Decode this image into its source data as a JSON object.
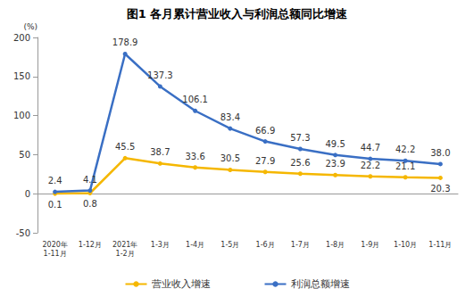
{
  "chart_data": {
    "type": "line",
    "title": "图1 各月累计营业收入与利润总额同比增速",
    "ylabel": "(%)",
    "categories": [
      "2020年\n1-11月",
      "1-12月",
      "2021年\n1-2月",
      "1-3月",
      "1-4月",
      "1-5月",
      "1-6月",
      "1-7月",
      "1-8月",
      "1-9月",
      "1-10月",
      "1-11月"
    ],
    "series": [
      {
        "name": "营业收入增速",
        "color": "#f5b700",
        "marker": "circle",
        "values": [
          0.1,
          0.8,
          45.5,
          38.7,
          33.6,
          30.5,
          27.9,
          25.6,
          23.9,
          22.2,
          21.1,
          20.3
        ],
        "value_labels": [
          "0.1",
          "0.8",
          "45.5",
          "38.7",
          "33.6",
          "30.5",
          "27.9",
          "25.6",
          "23.9",
          "22.2",
          "21.1",
          "20.3"
        ]
      },
      {
        "name": "利润总额增速",
        "color": "#3a6fc4",
        "marker": "circle",
        "values": [
          2.4,
          4.1,
          178.9,
          137.3,
          106.1,
          83.4,
          66.9,
          57.3,
          49.5,
          44.7,
          42.2,
          38.0
        ],
        "value_labels": [
          "2.4",
          "4.1",
          "178.9",
          "137.3",
          "106.1",
          "83.4",
          "66.9",
          "57.3",
          "49.5",
          "44.7",
          "42.2",
          "38.0"
        ]
      }
    ],
    "ylim": [
      -50,
      200
    ],
    "yticks": [
      -50,
      0,
      50,
      100,
      150,
      200
    ],
    "grid": false,
    "legend": "bottom",
    "data_labels": true
  }
}
